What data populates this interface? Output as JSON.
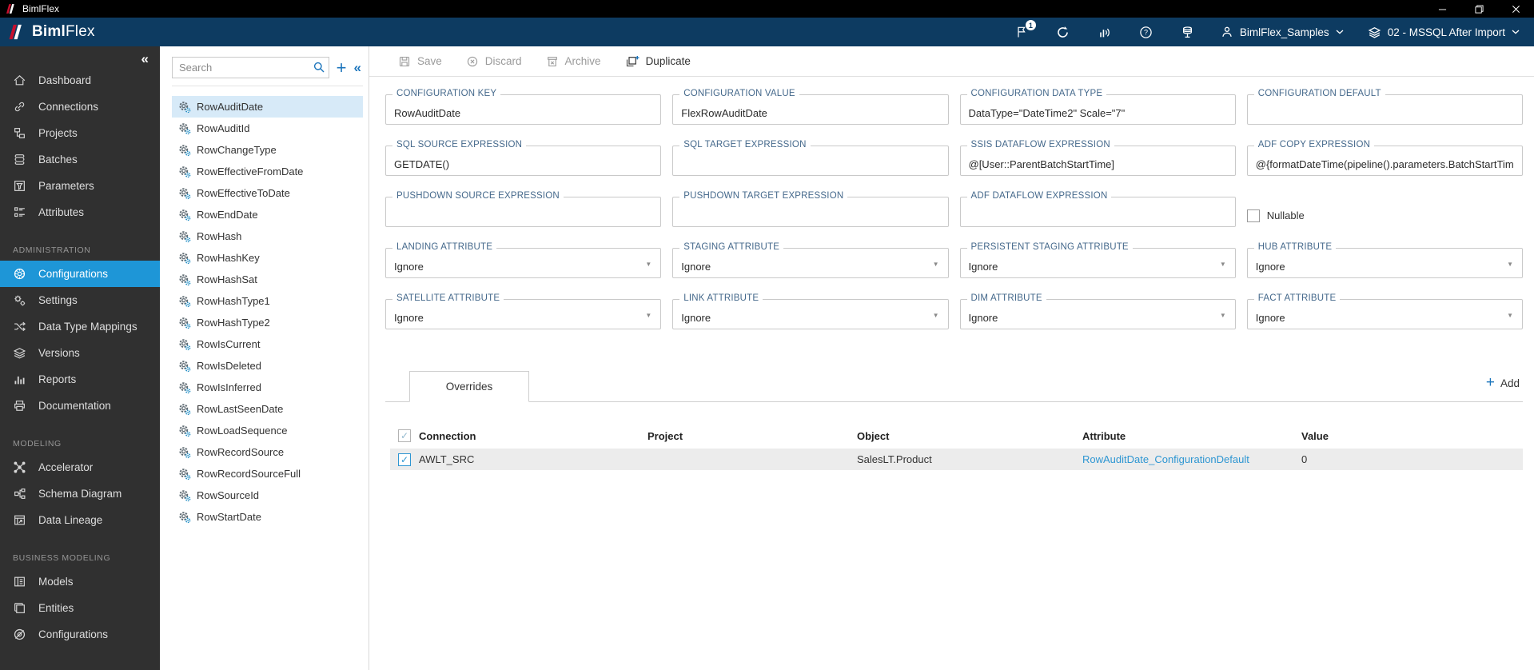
{
  "window": {
    "title": "BimlFlex"
  },
  "header": {
    "brand_bold": "Biml",
    "brand_light": "Flex",
    "notification_count": "1",
    "user_menu_label": "BimlFlex_Samples",
    "environment_menu_label": "02 - MSSQL After Import"
  },
  "sidebar": {
    "sections": [
      {
        "label": "",
        "items": [
          {
            "label": "Dashboard",
            "icon": "home"
          },
          {
            "label": "Connections",
            "icon": "link"
          },
          {
            "label": "Projects",
            "icon": "projects"
          },
          {
            "label": "Batches",
            "icon": "batches"
          },
          {
            "label": "Parameters",
            "icon": "parameters"
          },
          {
            "label": "Attributes",
            "icon": "attributes"
          }
        ]
      },
      {
        "label": "ADMINISTRATION",
        "items": [
          {
            "label": "Configurations",
            "icon": "configurations",
            "active": true
          },
          {
            "label": "Settings",
            "icon": "settings"
          },
          {
            "label": "Data Type Mappings",
            "icon": "mappings"
          },
          {
            "label": "Versions",
            "icon": "versions"
          },
          {
            "label": "Reports",
            "icon": "reports"
          },
          {
            "label": "Documentation",
            "icon": "documentation"
          }
        ]
      },
      {
        "label": "MODELING",
        "items": [
          {
            "label": "Accelerator",
            "icon": "accelerator"
          },
          {
            "label": "Schema Diagram",
            "icon": "schema"
          },
          {
            "label": "Data Lineage",
            "icon": "lineage"
          }
        ]
      },
      {
        "label": "BUSINESS MODELING",
        "items": [
          {
            "label": "Models",
            "icon": "models"
          },
          {
            "label": "Entities",
            "icon": "entities"
          },
          {
            "label": "Configurations",
            "icon": "configurations-alt"
          }
        ]
      }
    ]
  },
  "list_panel": {
    "search_placeholder": "Search",
    "selected": "RowAuditDate",
    "items": [
      "RowAuditDate",
      "RowAuditId",
      "RowChangeType",
      "RowEffectiveFromDate",
      "RowEffectiveToDate",
      "RowEndDate",
      "RowHash",
      "RowHashKey",
      "RowHashSat",
      "RowHashType1",
      "RowHashType2",
      "RowIsCurrent",
      "RowIsDeleted",
      "RowIsInferred",
      "RowLastSeenDate",
      "RowLoadSequence",
      "RowRecordSource",
      "RowRecordSourceFull",
      "RowSourceId",
      "RowStartDate"
    ]
  },
  "toolbar": {
    "save": {
      "label": "Save",
      "enabled": false
    },
    "discard": {
      "label": "Discard",
      "enabled": false
    },
    "archive": {
      "label": "Archive",
      "enabled": false
    },
    "duplicate": {
      "label": "Duplicate",
      "enabled": true
    }
  },
  "form": {
    "rows": [
      [
        {
          "kind": "input",
          "label": "CONFIGURATION KEY",
          "value": "RowAuditDate"
        },
        {
          "kind": "input",
          "label": "CONFIGURATION VALUE",
          "value": "FlexRowAuditDate"
        },
        {
          "kind": "input",
          "label": "CONFIGURATION DATA TYPE",
          "value": "DataType=\"DateTime2\" Scale=\"7\""
        },
        {
          "kind": "input",
          "label": "CONFIGURATION DEFAULT",
          "value": ""
        }
      ],
      [
        {
          "kind": "input",
          "label": "SQL SOURCE EXPRESSION",
          "value": "GETDATE()"
        },
        {
          "kind": "input",
          "label": "SQL TARGET EXPRESSION",
          "value": ""
        },
        {
          "kind": "input",
          "label": "SSIS DATAFLOW EXPRESSION",
          "value": "@[User::ParentBatchStartTime]"
        },
        {
          "kind": "input",
          "label": "ADF COPY EXPRESSION",
          "value": "@{formatDateTime(pipeline().parameters.BatchStartTime, 'yyyy-"
        }
      ],
      [
        {
          "kind": "input",
          "label": "PUSHDOWN SOURCE EXPRESSION",
          "value": ""
        },
        {
          "kind": "input",
          "label": "PUSHDOWN TARGET EXPRESSION",
          "value": ""
        },
        {
          "kind": "input",
          "label": "ADF DATAFLOW EXPRESSION",
          "value": ""
        },
        {
          "kind": "checkbox",
          "label": "Nullable",
          "checked": false
        }
      ],
      [
        {
          "kind": "select",
          "label": "LANDING ATTRIBUTE",
          "value": "Ignore"
        },
        {
          "kind": "select",
          "label": "STAGING ATTRIBUTE",
          "value": "Ignore"
        },
        {
          "kind": "select",
          "label": "PERSISTENT STAGING ATTRIBUTE",
          "value": "Ignore"
        },
        {
          "kind": "select",
          "label": "HUB ATTRIBUTE",
          "value": "Ignore"
        }
      ],
      [
        {
          "kind": "select",
          "label": "SATELLITE ATTRIBUTE",
          "value": "Ignore"
        },
        {
          "kind": "select",
          "label": "LINK ATTRIBUTE",
          "value": "Ignore"
        },
        {
          "kind": "select",
          "label": "DIM ATTRIBUTE",
          "value": "Ignore"
        },
        {
          "kind": "select",
          "label": "FACT ATTRIBUTE",
          "value": "Ignore"
        }
      ]
    ]
  },
  "overrides": {
    "tab_label": "Overrides",
    "add_label": "Add",
    "columns": [
      "Connection",
      "Project",
      "Object",
      "Attribute",
      "Value"
    ],
    "rows": [
      {
        "selected": true,
        "connection": "AWLT_SRC",
        "project": "",
        "object": "SalesLT.Product",
        "attribute": "RowAuditDate_ConfigurationDefault",
        "value": "0",
        "attribute_is_link": true
      }
    ]
  },
  "glyphs": {
    "collapse": "«",
    "add_plus": "+",
    "select_caret": "▼",
    "check": "✓"
  },
  "colors": {
    "titlebar": "#000000",
    "header_navy": "#0d3b61",
    "sidebar_bg": "#303030",
    "accent_blue": "#1e96d7",
    "icon_blue": "#1c75bc",
    "link_blue": "#2e96d2",
    "selected_item_bg": "#d7eaf8",
    "table_row_bg": "#ececec",
    "label_blue": "#44688b"
  }
}
